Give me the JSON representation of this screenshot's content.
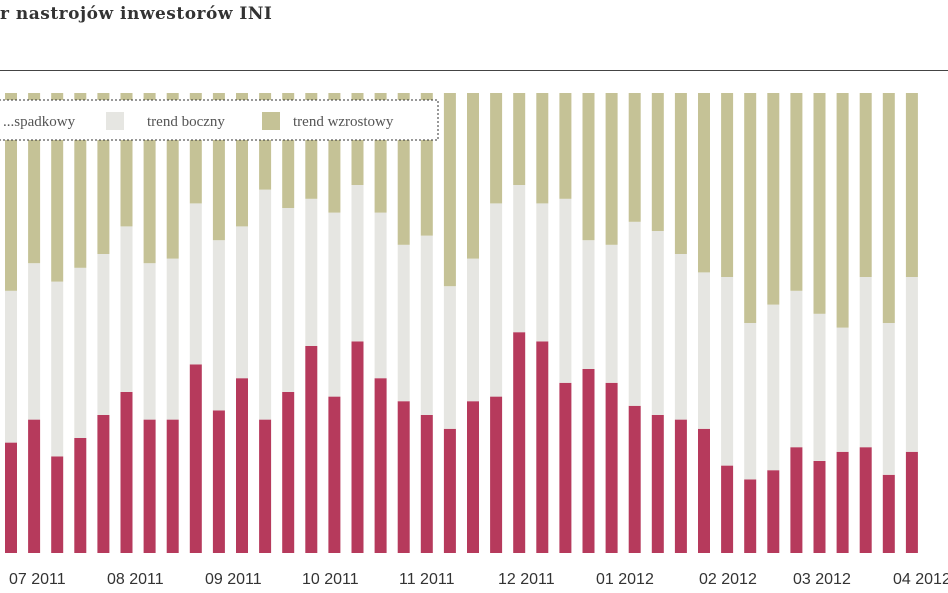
{
  "chart_data": {
    "type": "bar",
    "stacked": true,
    "title": "r nastrojów inwestorów INI",
    "colors": {
      "red": "#b63a5c",
      "light": "#e6e6e2",
      "olive": "#c5c296"
    },
    "legend": {
      "placement": "top-left",
      "entries": [
        "...spadkowy",
        "trend boczny",
        "trend wzrostowy"
      ]
    },
    "x_tick_labels": [
      "07 2011",
      "08 2011",
      "09 2011",
      "10 2011",
      "11 2011",
      "12 2011",
      "01 2012",
      "02 2012",
      "03 2012",
      "04 2012"
    ],
    "ylim": [
      0,
      100
    ],
    "series": [
      {
        "legend_index": 0,
        "values": [
          24,
          29,
          21,
          25,
          30,
          35,
          29,
          29,
          41,
          31,
          38,
          29,
          35,
          45,
          34,
          46,
          38,
          33,
          30,
          27,
          33,
          34,
          48,
          46,
          37,
          40,
          37,
          32,
          30,
          29,
          27,
          19,
          16,
          18,
          23,
          20,
          22,
          23,
          17,
          22
        ]
      },
      {
        "legend_index": 1,
        "values": [
          33,
          34,
          38,
          37,
          35,
          36,
          34,
          35,
          35,
          37,
          33,
          50,
          40,
          32,
          40,
          34,
          36,
          34,
          39,
          31,
          31,
          42,
          32,
          30,
          40,
          28,
          30,
          40,
          40,
          36,
          34,
          41,
          34,
          36,
          34,
          32,
          27,
          37,
          33,
          38
        ]
      },
      {
        "legend_index": 2,
        "values": [
          43,
          37,
          41,
          38,
          35,
          29,
          37,
          36,
          24,
          32,
          29,
          21,
          25,
          23,
          26,
          20,
          26,
          33,
          31,
          42,
          36,
          24,
          20,
          24,
          23,
          32,
          33,
          28,
          30,
          35,
          39,
          40,
          50,
          46,
          43,
          48,
          51,
          40,
          50,
          40
        ]
      }
    ]
  }
}
